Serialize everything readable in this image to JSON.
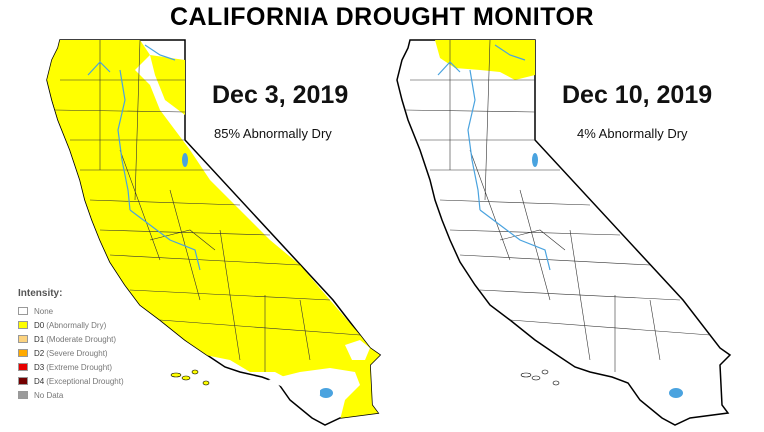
{
  "header": {
    "title": "CALIFORNIA DROUGHT MONITOR"
  },
  "maps": [
    {
      "date": "Dec 3, 2019",
      "stat": "85% Abnormally Dry"
    },
    {
      "date": "Dec 10, 2019",
      "stat": "4% Abnormally Dry"
    }
  ],
  "legend": {
    "title": "Intensity:",
    "items": [
      {
        "code": "",
        "desc": "None",
        "color": "#ffffff"
      },
      {
        "code": "D0",
        "desc": "(Abnormally Dry)",
        "color": "#ffff00"
      },
      {
        "code": "D1",
        "desc": "(Moderate Drought)",
        "color": "#fcd37f"
      },
      {
        "code": "D2",
        "desc": "(Severe Drought)",
        "color": "#ffaa00"
      },
      {
        "code": "D3",
        "desc": "(Extreme Drought)",
        "color": "#e60000"
      },
      {
        "code": "D4",
        "desc": "(Exceptional Drought)",
        "color": "#730000"
      },
      {
        "code": "",
        "desc": "No Data",
        "color": "#9b9b9b"
      }
    ]
  },
  "colors": {
    "abnormally_dry": "#ffff00",
    "water": "#4aa3df",
    "border": "#000000"
  }
}
